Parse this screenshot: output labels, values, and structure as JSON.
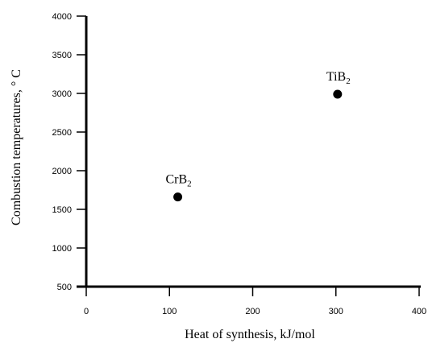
{
  "chart_data": {
    "type": "scatter",
    "xlabel": "Heat of synthesis,  kJ/mol",
    "ylabel": "Combustion temperatures, ° C",
    "xlim": [
      0,
      400
    ],
    "ylim": [
      500,
      4000
    ],
    "x_ticks": [
      0,
      100,
      200,
      300,
      400
    ],
    "y_ticks": [
      500,
      1000,
      1500,
      2000,
      2500,
      3000,
      3500,
      4000
    ],
    "grid": false,
    "legend": "none",
    "marker_color": "#000000",
    "points": [
      {
        "x": 110,
        "y": 1660,
        "label": {
          "base": "CrB",
          "sub": "2"
        }
      },
      {
        "x": 302,
        "y": 2990,
        "label": {
          "base": "TiB",
          "sub": "2"
        }
      }
    ]
  }
}
